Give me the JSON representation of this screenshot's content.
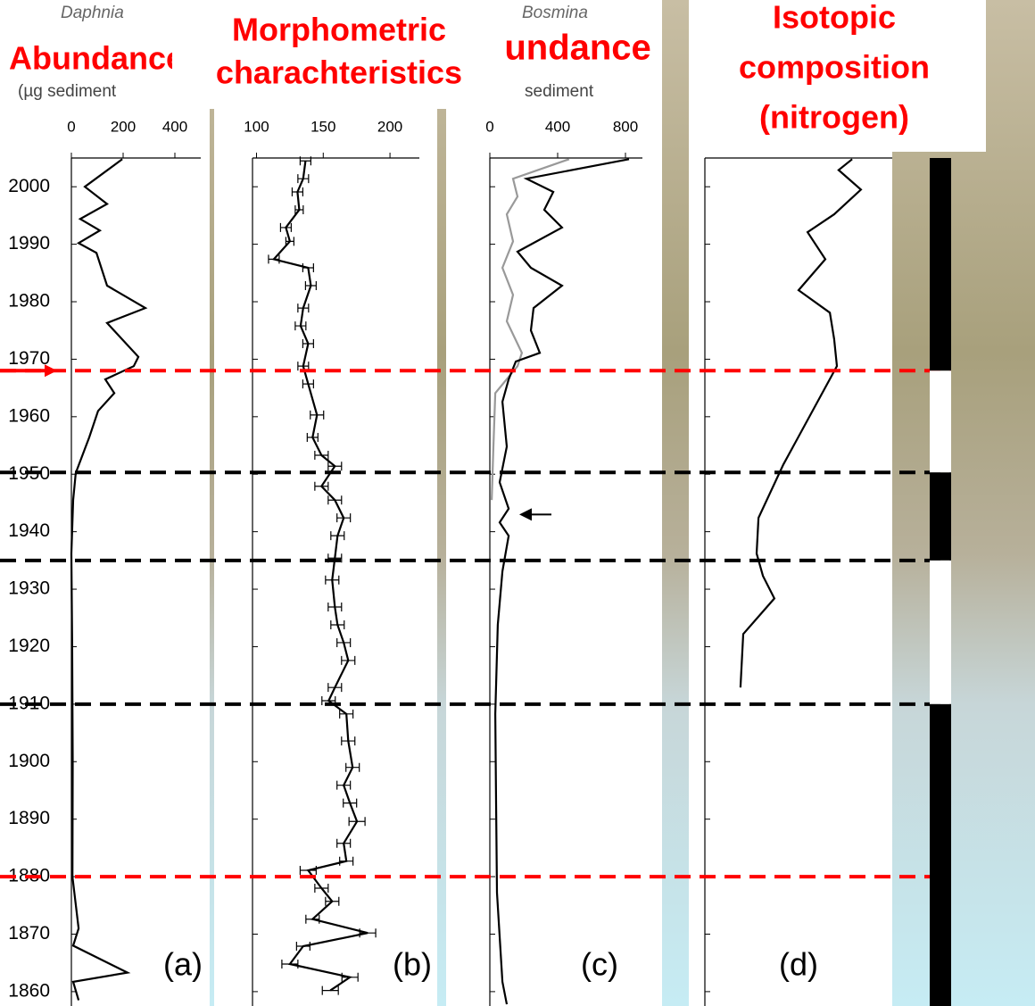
{
  "headings": [
    [
      "Abundance"
    ],
    [
      "Morphometric",
      "charachteristics"
    ],
    [
      "Abundance"
    ],
    [
      "Isotopic",
      "composition",
      "(nitrogen)"
    ]
  ],
  "chart_data": [
    {
      "type": "line",
      "label": "(a)",
      "subtitle": "Daphnia",
      "x_label": "(µg sediment",
      "xlim": [
        0,
        500
      ],
      "xticks": [
        0,
        200,
        400
      ],
      "ylim": [
        1857.5,
        2005
      ],
      "yticks": [
        1860,
        1870,
        1880,
        1890,
        1900,
        1910,
        1920,
        1930,
        1940,
        1950,
        1960,
        1970,
        1980,
        1990,
        2000
      ],
      "series": [
        {
          "color": "#000000",
          "years": [
            2004.8,
            2000,
            1997,
            1994.4,
            1992.4,
            1990.2,
            1988.5,
            1982.8,
            1978.9,
            1976.3,
            1970.4,
            1968.8,
            1966.5,
            1964.1,
            1961,
            1956.4,
            1954.4,
            1950.2,
            1945.5,
            1936.2,
            1920,
            1900,
            1880,
            1871,
            1868,
            1863.3,
            1861.7,
            1858.5
          ],
          "values": [
            197,
            52,
            138,
            34,
            110,
            28,
            97,
            138,
            286,
            138,
            259,
            241,
            131,
            166,
            103,
            69,
            52,
            17,
            7,
            0,
            3,
            5,
            4,
            28,
            7,
            217,
            7,
            28
          ]
        }
      ]
    },
    {
      "type": "errorline",
      "label": "(b)",
      "xlim": [
        97,
        222
      ],
      "xticks": [
        100,
        150,
        200
      ],
      "ylim": [
        1857.5,
        2005
      ],
      "yticks": [
        1860,
        1870,
        1880,
        1890,
        1900,
        1910,
        1920,
        1930,
        1940,
        1950,
        1960,
        1970,
        1980,
        1990,
        2000
      ],
      "series": [
        {
          "color": "#000000",
          "years": [
            2004.5,
            2001.4,
            1999.1,
            1996,
            1992.9,
            1990.5,
            1987.4,
            1985.9,
            1982.8,
            1978.9,
            1975.8,
            1972.7,
            1968.8,
            1965.7,
            1960.3,
            1956.4,
            1953.3,
            1951.4,
            1947.9,
            1945.5,
            1942.4,
            1939.3,
            1935.4,
            1931.6,
            1926.9,
            1923.8,
            1920.7,
            1917.6,
            1912.9,
            1910.6,
            1908.3,
            1903.6,
            1899,
            1895.9,
            1892.8,
            1889.6,
            1885.8,
            1882.7,
            1881.1,
            1878,
            1875.7,
            1872.6,
            1870.2,
            1867.9,
            1864.8,
            1862.5,
            1860.2
          ],
          "values": [
            136.7,
            135,
            130.7,
            132,
            122,
            125,
            113,
            138.7,
            140.7,
            135,
            133,
            138.7,
            135,
            138.7,
            145.3,
            142,
            148.7,
            158.7,
            148.7,
            158.7,
            165.3,
            160.7,
            158.7,
            156.7,
            158.7,
            160.7,
            165.3,
            168.7,
            158.7,
            154,
            167.3,
            168.7,
            172,
            165.3,
            170,
            175.3,
            165.3,
            167.3,
            138.7,
            148.7,
            156.7,
            142,
            183.3,
            135,
            125,
            170,
            155.3
          ],
          "errors": [
            4,
            4,
            4,
            3,
            4,
            3,
            4,
            4,
            4,
            4,
            4,
            4,
            4,
            4,
            5,
            4,
            5,
            5,
            5,
            5,
            5,
            5,
            5,
            5,
            5,
            5,
            5,
            5,
            5,
            5,
            5,
            5,
            5,
            5,
            5,
            6,
            5,
            5,
            6,
            5,
            5,
            5,
            6,
            5,
            6,
            6,
            6
          ]
        }
      ]
    },
    {
      "type": "line",
      "label": "(c)",
      "subtitle": "Bosmina",
      "x_label": "sediment",
      "xlim": [
        0,
        900
      ],
      "xticks": [
        0,
        400,
        800
      ],
      "ylim": [
        1857.5,
        2005
      ],
      "yticks": [
        1860,
        1870,
        1880,
        1890,
        1900,
        1910,
        1920,
        1930,
        1940,
        1950,
        1960,
        1970,
        1980,
        1990,
        2000
      ],
      "series": [
        {
          "color": "#999999",
          "years": [
            2004.8,
            2001.4,
            1998.3,
            1995.2,
            1990.5,
            1985.9,
            1981.2,
            1976.6,
            1971.1,
            1968.8,
            1964.1,
            1954.8,
            1945.5
          ],
          "values": [
            468,
            137,
            163,
            100,
            137,
            74,
            137,
            100,
            189,
            163,
            32,
            21,
            11
          ]
        },
        {
          "color": "#000000",
          "years": [
            2004.8,
            2001.4,
            1999.1,
            1996,
            1992.9,
            1988.7,
            1985.9,
            1982.8,
            1978.9,
            1975,
            1971.1,
            1969.6,
            1966.5,
            1962.6,
            1954.8,
            1948.6,
            1944,
            1941.6,
            1939.3,
            1933.1,
            1923.8,
            1908.3,
            1892.8,
            1877.2,
            1861.7,
            1857.8
          ],
          "values": [
            821,
            216,
            374,
            321,
            426,
            163,
            242,
            426,
            258,
            242,
            295,
            153,
            111,
            74,
            100,
            58,
            111,
            58,
            111,
            74,
            47,
            32,
            37,
            42,
            74,
            100
          ]
        }
      ]
    },
    {
      "type": "line",
      "label": "(d)",
      "xlim": [
        0,
        10
      ],
      "ylim": [
        1857.5,
        2005
      ],
      "yticks": [
        1860,
        1870,
        1880,
        1890,
        1900,
        1910,
        1920,
        1930,
        1940,
        1950,
        1960,
        1970,
        1980,
        1990,
        2000
      ],
      "series": [
        {
          "color": "#000000",
          "years": [
            2004.8,
            2002.9,
            1999.5,
            1995.2,
            1992.1,
            1987.4,
            1982,
            1978.1,
            1973.5,
            1968.8,
            1951.7,
            1942.4,
            1936.2,
            1932.3,
            1928.4,
            1922.2,
            1912.9
          ],
          "values": [
            7.86,
            7.14,
            8.33,
            6.9,
            5.48,
            6.43,
            5.0,
            6.67,
            6.9,
            7.05,
            4.19,
            2.86,
            2.76,
            3.1,
            3.71,
            2.05,
            1.9
          ]
        }
      ]
    }
  ],
  "events": [
    {
      "year": 1968,
      "color": "#ff0000"
    },
    {
      "year": 1950.3,
      "color": "#000000"
    },
    {
      "year": 1935,
      "color": "#000000"
    },
    {
      "year": 1910,
      "color": "#000000"
    },
    {
      "year": 1880,
      "color": "#ff0000"
    }
  ],
  "arrows": [
    {
      "year": 1968,
      "color": "#ff0000"
    },
    {
      "year": 1943,
      "color": "#000000"
    }
  ],
  "period_bar": [
    {
      "start": 1968,
      "end": 2005,
      "color": "#000000"
    },
    {
      "start": 1950.3,
      "end": 1968,
      "color": "#ffffff"
    },
    {
      "start": 1935,
      "end": 1950.3,
      "color": "#000000"
    },
    {
      "start": 1910,
      "end": 1935,
      "color": "#ffffff"
    },
    {
      "start": 1857.5,
      "end": 1910,
      "color": "#000000"
    }
  ]
}
